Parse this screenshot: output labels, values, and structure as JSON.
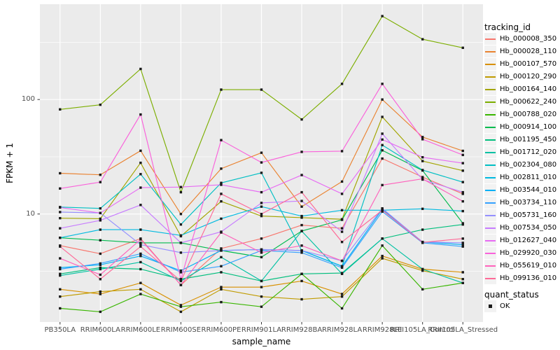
{
  "figure": {
    "y_axis_title": "FPKM + 1",
    "x_axis_title": "sample_name",
    "legend": {
      "title": "tracking_id",
      "quant_title": "quant_status",
      "quant_label": "OK"
    },
    "colors": {
      "panel_bg": "#EBEBEB",
      "gridline": "#FFFFFF",
      "tick_mark": "#333333",
      "tick_label": "#4D4D4D",
      "axis_title": "#000000",
      "point_marker": "#1A1A1A",
      "legend_key_bg": "#F2F2F2"
    }
  },
  "chart_data": {
    "type": "line",
    "title": "",
    "xlabel": "sample_name",
    "ylabel": "FPKM + 1",
    "y_scale": "log10",
    "ylim": [
      1.14,
      680
    ],
    "y_major_ticks": [
      100,
      10
    ],
    "y_major_tick_labels": [
      "100",
      "10"
    ],
    "y_minor_gridlines": [
      316.2,
      31.62,
      3.162
    ],
    "grid": "on",
    "legend_position": "right",
    "legend_title": "tracking_id",
    "point_shape": "filled-square",
    "point_legend": {
      "title": "quant_status",
      "labels": [
        "OK"
      ]
    },
    "x_categories": [
      "PB350LA",
      "RRIM600LA",
      "RRIM600LE",
      "RRIM600SE",
      "RRIM600PE",
      "RRIM901LA",
      "RRIM928BA",
      "RRIM928LA",
      "RRIM928LE",
      "RRII105LA_Control",
      "RRII105LA_Stressed"
    ],
    "series": [
      {
        "name": "Hb_000008_350",
        "color": "#F8766D",
        "values": [
          5.3,
          4.5,
          6.1,
          2.4,
          5.0,
          6.1,
          8.0,
          7.5,
          30.5,
          21.0,
          15.0
        ]
      },
      {
        "name": "Hb_000028_110",
        "color": "#EA8331",
        "values": [
          22.7,
          22.0,
          35.7,
          10.0,
          24.9,
          34.3,
          11.6,
          19.2,
          100.0,
          47.0,
          35.6
        ]
      },
      {
        "name": "Hb_000107_570",
        "color": "#D89000",
        "values": [
          2.2,
          2.0,
          2.5,
          1.6,
          2.3,
          2.3,
          2.6,
          2.0,
          4.3,
          3.3,
          3.1
        ]
      },
      {
        "name": "Hb_000120_290",
        "color": "#C09B00",
        "values": [
          1.9,
          2.1,
          2.2,
          1.4,
          2.2,
          1.9,
          1.8,
          1.9,
          4.1,
          3.2,
          2.7
        ]
      },
      {
        "name": "Hb_000164_140",
        "color": "#A3A500",
        "values": [
          9.2,
          9.1,
          28.0,
          6.4,
          12.9,
          9.6,
          9.3,
          9.0,
          70.5,
          29.0,
          23.9
        ]
      },
      {
        "name": "Hb_000622_240",
        "color": "#7CAE00",
        "values": [
          82,
          90,
          185,
          15.5,
          122,
          122,
          67,
          137,
          535,
          336,
          283
        ]
      },
      {
        "name": "Hb_000788_020",
        "color": "#39B600",
        "values": [
          1.5,
          1.4,
          2.0,
          1.55,
          1.7,
          1.55,
          3.0,
          1.5,
          5.3,
          2.2,
          2.5
        ]
      },
      {
        "name": "Hb_000914_100",
        "color": "#00BB4E",
        "values": [
          6.2,
          5.9,
          5.6,
          5.6,
          4.8,
          4.2,
          7.1,
          8.9,
          36.0,
          24.0,
          8.3
        ]
      },
      {
        "name": "Hb_001195_450",
        "color": "#00BF7D",
        "values": [
          3.0,
          3.4,
          3.3,
          2.7,
          3.1,
          2.6,
          3.0,
          3.05,
          6.1,
          7.3,
          8.1
        ]
      },
      {
        "name": "Hb_001712_020",
        "color": "#00C1A3",
        "values": [
          2.9,
          3.3,
          3.8,
          2.6,
          4.2,
          2.6,
          7.1,
          3.0,
          6.1,
          3.3,
          2.5
        ]
      },
      {
        "name": "Hb_002304_080",
        "color": "#00BFC4",
        "values": [
          11.5,
          11.2,
          22.3,
          8.1,
          18.7,
          22.9,
          4.8,
          3.5,
          40.0,
          24.2,
          19.0
        ]
      },
      {
        "name": "Hb_002811_010",
        "color": "#00BAE0",
        "values": [
          6.2,
          7.3,
          7.3,
          6.5,
          9.1,
          11.6,
          9.6,
          10.8,
          10.8,
          11.1,
          10.6
        ]
      },
      {
        "name": "Hb_003544_010",
        "color": "#00B0F6",
        "values": [
          3.4,
          3.6,
          4.3,
          3.2,
          4.8,
          4.9,
          4.8,
          3.5,
          11.0,
          5.7,
          5.4
        ]
      },
      {
        "name": "Hb_003734_110",
        "color": "#35A2FF",
        "values": [
          3.3,
          3.7,
          4.5,
          3.1,
          3.5,
          4.8,
          4.6,
          3.4,
          10.5,
          5.6,
          5.2
        ]
      },
      {
        "name": "Hb_005731_160",
        "color": "#9590FF",
        "values": [
          10.4,
          10.2,
          5.4,
          4.6,
          4.8,
          4.9,
          4.8,
          3.9,
          11.2,
          5.7,
          5.6
        ]
      },
      {
        "name": "Hb_007534_050",
        "color": "#C77CFF",
        "values": [
          7.5,
          8.8,
          12.0,
          5.6,
          7.0,
          12.5,
          13.0,
          7.0,
          50.3,
          20.0,
          15.5
        ]
      },
      {
        "name": "Hb_012627_040",
        "color": "#E76BF3",
        "values": [
          11.4,
          10.2,
          17.0,
          17.2,
          18.0,
          15.5,
          21.9,
          15.0,
          44.7,
          31.3,
          27.8
        ]
      },
      {
        "name": "Hb_029920_030",
        "color": "#FA62DB",
        "values": [
          16.7,
          19.0,
          74.0,
          2.7,
          44.2,
          28.2,
          34.9,
          35.4,
          137.0,
          45.0,
          32.8
        ]
      },
      {
        "name": "Hb_055619_010",
        "color": "#FF62BC",
        "values": [
          4.1,
          2.95,
          6.0,
          2.4,
          6.9,
          4.6,
          5.3,
          3.9,
          17.9,
          20.3,
          12.9
        ]
      },
      {
        "name": "Hb_099136_010",
        "color": "#FF6A98",
        "values": [
          5.2,
          2.7,
          5.2,
          2.6,
          15.0,
          10.0,
          15.5,
          5.7,
          10.8,
          5.65,
          6.1
        ]
      }
    ]
  }
}
